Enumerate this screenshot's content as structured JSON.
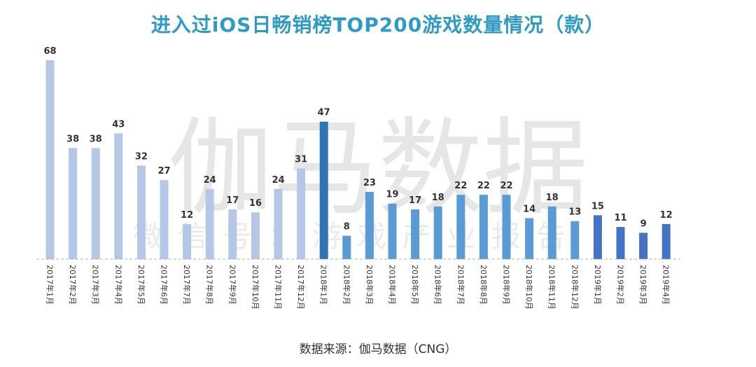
{
  "chart_data": {
    "type": "bar",
    "title": "进入过iOS日畅销榜TOP200游戏数量情况（款）",
    "categories": [
      "2017年1月",
      "2017年2月",
      "2017年3月",
      "2017年4月",
      "2017年5月",
      "2017年6月",
      "2017年7月",
      "2017年8月",
      "2017年9月",
      "2017年10月",
      "2017年11月",
      "2017年12月",
      "2018年1月",
      "2018年2月",
      "2018年3月",
      "2018年4月",
      "2018年5月",
      "2018年6月",
      "2018年7月",
      "2018年8月",
      "2018年9月",
      "2018年10月",
      "2018年11月",
      "2018年12月",
      "2019年1月",
      "2019年2月",
      "2019年3月",
      "2019年4月"
    ],
    "values": [
      68,
      38,
      38,
      43,
      32,
      27,
      12,
      24,
      17,
      16,
      24,
      31,
      47,
      8,
      23,
      19,
      17,
      18,
      22,
      22,
      22,
      14,
      18,
      13,
      15,
      11,
      9,
      12
    ],
    "xlabel": "",
    "ylabel": "",
    "ylim": [
      0,
      68
    ],
    "grid": false,
    "colors": {
      "2017": "#b4c7e7",
      "2018_peak": "#2e75b6",
      "2018": "#5b9bd5",
      "2019": "#4472c4"
    }
  },
  "watermark": {
    "main": "伽马数据",
    "sub": "微信号：游戏产业报告"
  },
  "source": "数据来源：伽马数据（CNG）"
}
